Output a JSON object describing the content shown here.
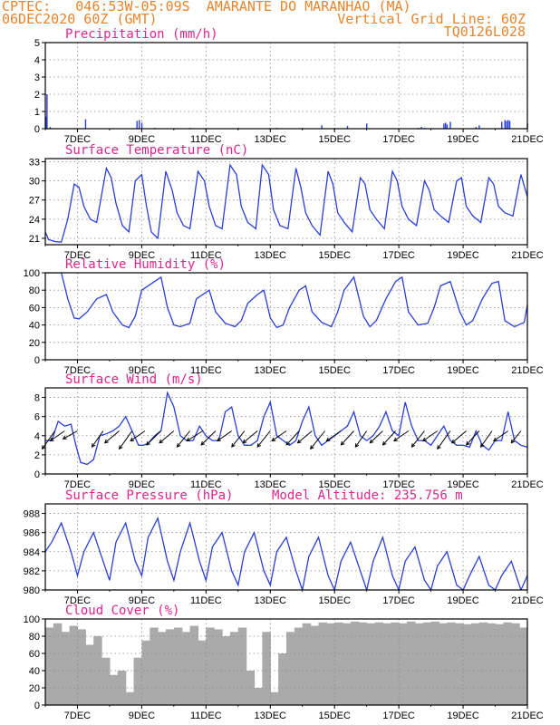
{
  "header": {
    "line1_left": "CPTEC:   046:53W-05:09S  AMARANTE DO MARANHAO (MA)",
    "line2_left": "06DEC2020 60Z (GMT)",
    "line2_right": "Vertical Grid Line: 60Z",
    "line3_right": "TQ0126L028"
  },
  "colors": {
    "header": "#e8842c",
    "title": "#e0248c",
    "line": "#2a3fd6",
    "cloud": "#aaaaaa",
    "arrow": "#000000"
  },
  "chart_data": [
    {
      "type": "bar",
      "title": "Precipitation (mm/h)",
      "xlim": [
        6,
        21
      ],
      "ylim": [
        0,
        5
      ],
      "x_ticks": [
        7,
        9,
        11,
        13,
        15,
        17,
        19,
        21
      ],
      "x_tick_labels": [
        "7DEC",
        "9DEC",
        "11DEC",
        "13DEC",
        "15DEC",
        "17DEC",
        "19DEC",
        "21DEC"
      ],
      "y_ticks": [
        0,
        1,
        2,
        3,
        4,
        5
      ],
      "x": [
        6.02,
        6.05,
        6.15,
        7.25,
        8.85,
        8.92,
        9.0,
        9.4,
        10.5,
        12.0,
        13.2,
        14.0,
        14.6,
        15.0,
        15.4,
        16.0,
        17.6,
        17.7,
        17.8,
        18.4,
        18.45,
        18.5,
        18.6,
        19.4,
        19.5,
        20.2,
        20.3,
        20.35,
        20.4,
        20.45,
        21.0
      ],
      "values": [
        0.7,
        2.0,
        0.1,
        0.55,
        0.45,
        0.5,
        0.35,
        0.05,
        0.05,
        0.05,
        0.05,
        0.05,
        0.2,
        0.05,
        0.15,
        0.3,
        0.05,
        0.1,
        0.05,
        0.3,
        0.35,
        0.25,
        0.4,
        0.1,
        0.2,
        0.4,
        0.5,
        0.45,
        0.5,
        0.45,
        0.3
      ]
    },
    {
      "type": "line",
      "title": "Surface Temperature (nC)",
      "xlim": [
        6,
        21
      ],
      "ylim": [
        20,
        33.5
      ],
      "x_ticks": [
        7,
        9,
        11,
        13,
        15,
        17,
        19,
        21
      ],
      "x_tick_labels": [
        "7DEC",
        "9DEC",
        "11DEC",
        "13DEC",
        "15DEC",
        "17DEC",
        "19DEC",
        "21DEC"
      ],
      "y_ticks": [
        21,
        24,
        27,
        30,
        33
      ],
      "x": [
        6.0,
        6.1,
        6.3,
        6.5,
        6.7,
        6.9,
        7.05,
        7.2,
        7.4,
        7.6,
        7.9,
        8.05,
        8.2,
        8.4,
        8.6,
        8.8,
        9.0,
        9.15,
        9.3,
        9.5,
        9.75,
        9.95,
        10.1,
        10.3,
        10.5,
        10.75,
        10.95,
        11.1,
        11.3,
        11.5,
        11.75,
        11.95,
        12.1,
        12.3,
        12.55,
        12.75,
        12.95,
        13.1,
        13.3,
        13.55,
        13.8,
        13.95,
        14.1,
        14.3,
        14.55,
        14.8,
        14.95,
        15.1,
        15.3,
        15.55,
        15.8,
        15.95,
        16.1,
        16.3,
        16.55,
        16.8,
        16.95,
        17.1,
        17.3,
        17.55,
        17.8,
        17.95,
        18.1,
        18.3,
        18.55,
        18.8,
        18.95,
        19.1,
        19.3,
        19.55,
        19.8,
        19.95,
        20.1,
        20.3,
        20.55,
        20.8,
        21.0
      ],
      "values": [
        22.0,
        20.8,
        20.5,
        20.4,
        24.0,
        29.5,
        29.0,
        26.0,
        24.0,
        23.5,
        32.0,
        30.5,
        26.5,
        23.0,
        22.0,
        30.0,
        31.0,
        26.0,
        22.0,
        21.0,
        31.5,
        28.5,
        25.0,
        23.0,
        22.5,
        31.5,
        30.0,
        26.0,
        23.0,
        22.5,
        32.5,
        31.0,
        26.0,
        23.5,
        22.5,
        32.5,
        31.0,
        25.5,
        23.0,
        22.5,
        32.0,
        29.0,
        25.0,
        23.0,
        21.5,
        31.5,
        29.5,
        25.0,
        23.5,
        22.0,
        30.5,
        29.5,
        25.5,
        24.0,
        22.5,
        31.5,
        30.0,
        26.0,
        24.0,
        23.0,
        30.0,
        28.5,
        25.5,
        24.5,
        23.5,
        30.0,
        30.5,
        26.0,
        24.5,
        23.5,
        30.5,
        29.5,
        26.0,
        25.0,
        24.5,
        31.0,
        27.5
      ]
    },
    {
      "type": "line",
      "title": "Relative Humidity (%)",
      "xlim": [
        6,
        21
      ],
      "ylim": [
        0,
        100
      ],
      "x_ticks": [
        7,
        9,
        11,
        13,
        15,
        17,
        19,
        21
      ],
      "x_tick_labels": [
        "7DEC",
        "9DEC",
        "11DEC",
        "13DEC",
        "15DEC",
        "17DEC",
        "19DEC",
        "21DEC"
      ],
      "y_ticks": [
        0,
        20,
        40,
        60,
        80,
        100
      ],
      "x": [
        6.0,
        6.2,
        6.5,
        6.7,
        6.9,
        7.05,
        7.3,
        7.6,
        7.9,
        8.1,
        8.4,
        8.6,
        8.8,
        9.0,
        9.2,
        9.4,
        9.6,
        9.8,
        10.0,
        10.2,
        10.5,
        10.7,
        10.9,
        11.1,
        11.3,
        11.6,
        11.9,
        12.1,
        12.3,
        12.6,
        12.8,
        13.0,
        13.2,
        13.4,
        13.6,
        13.9,
        14.1,
        14.3,
        14.6,
        14.9,
        15.1,
        15.3,
        15.6,
        15.9,
        16.1,
        16.3,
        16.6,
        16.9,
        17.1,
        17.3,
        17.6,
        17.9,
        18.1,
        18.3,
        18.6,
        18.9,
        19.1,
        19.3,
        19.6,
        19.9,
        20.1,
        20.3,
        20.6,
        20.9,
        21.0
      ],
      "values": [
        100,
        100,
        100,
        70,
        48,
        47,
        55,
        70,
        75,
        55,
        40,
        37,
        50,
        80,
        85,
        90,
        95,
        60,
        40,
        38,
        42,
        70,
        75,
        80,
        55,
        42,
        38,
        45,
        65,
        75,
        80,
        48,
        37,
        40,
        60,
        80,
        85,
        55,
        43,
        38,
        55,
        80,
        95,
        50,
        38,
        45,
        70,
        90,
        95,
        55,
        40,
        42,
        60,
        85,
        90,
        55,
        40,
        45,
        70,
        88,
        90,
        45,
        38,
        43,
        63
      ]
    },
    {
      "type": "line",
      "title": "Surface Wind (m/s)",
      "xlim": [
        6,
        21
      ],
      "ylim": [
        0,
        9
      ],
      "x_ticks": [
        7,
        9,
        11,
        13,
        15,
        17,
        19,
        21
      ],
      "x_tick_labels": [
        "7DEC",
        "9DEC",
        "11DEC",
        "13DEC",
        "15DEC",
        "17DEC",
        "19DEC",
        "21DEC"
      ],
      "y_ticks": [
        0,
        2,
        4,
        6,
        8
      ],
      "x": [
        6.0,
        6.2,
        6.4,
        6.6,
        6.8,
        6.95,
        7.1,
        7.3,
        7.5,
        7.7,
        7.9,
        8.1,
        8.3,
        8.5,
        8.7,
        8.9,
        9.05,
        9.2,
        9.4,
        9.6,
        9.8,
        10.0,
        10.2,
        10.4,
        10.6,
        10.8,
        11.0,
        11.2,
        11.4,
        11.6,
        11.8,
        12.0,
        12.2,
        12.4,
        12.6,
        12.8,
        13.0,
        13.2,
        13.4,
        13.6,
        13.8,
        14.0,
        14.2,
        14.4,
        14.6,
        14.8,
        15.0,
        15.2,
        15.4,
        15.6,
        15.8,
        16.0,
        16.2,
        16.4,
        16.6,
        16.8,
        17.0,
        17.2,
        17.4,
        17.6,
        17.8,
        18.0,
        18.2,
        18.4,
        18.6,
        18.8,
        19.0,
        19.2,
        19.4,
        19.6,
        19.8,
        20.0,
        20.2,
        20.4,
        20.6,
        20.8,
        21.0
      ],
      "values": [
        3.5,
        3.5,
        5.5,
        5.0,
        5.2,
        3.0,
        1.2,
        1.0,
        1.5,
        4.0,
        4.2,
        4.5,
        5.0,
        6.0,
        4.5,
        3.0,
        3.0,
        3.2,
        4.0,
        4.5,
        8.5,
        7.0,
        4.0,
        3.5,
        3.5,
        5.0,
        4.0,
        3.5,
        3.5,
        6.5,
        7.0,
        4.0,
        3.0,
        3.0,
        3.5,
        6.0,
        7.5,
        4.0,
        3.5,
        3.0,
        3.5,
        5.5,
        7.0,
        4.0,
        3.0,
        3.5,
        4.0,
        4.5,
        5.0,
        6.5,
        4.0,
        3.5,
        4.0,
        5.0,
        6.5,
        4.5,
        4.0,
        7.5,
        5.0,
        3.5,
        3.5,
        3.0,
        4.0,
        5.0,
        3.5,
        3.0,
        3.0,
        2.8,
        4.5,
        3.0,
        2.5,
        3.5,
        3.5,
        6.5,
        3.5,
        3.0,
        2.8
      ]
    },
    {
      "type": "line",
      "title": "Surface Pressure (hPa)",
      "annotation": "Model Altitude: 235.756 m",
      "xlim": [
        6,
        21
      ],
      "ylim": [
        980,
        989
      ],
      "x_ticks": [
        7,
        9,
        11,
        13,
        15,
        17,
        19,
        21
      ],
      "x_tick_labels": [
        "7DEC",
        "9DEC",
        "11DEC",
        "13DEC",
        "15DEC",
        "17DEC",
        "19DEC",
        "21DEC"
      ],
      "y_ticks": [
        980,
        982,
        984,
        986,
        988
      ],
      "x": [
        6.0,
        6.2,
        6.5,
        6.8,
        7.0,
        7.2,
        7.5,
        7.8,
        8.0,
        8.2,
        8.5,
        8.8,
        9.0,
        9.2,
        9.5,
        9.8,
        10.0,
        10.2,
        10.5,
        10.8,
        11.0,
        11.2,
        11.5,
        11.8,
        12.0,
        12.2,
        12.5,
        12.8,
        13.0,
        13.2,
        13.5,
        13.8,
        14.0,
        14.2,
        14.5,
        14.8,
        15.0,
        15.2,
        15.5,
        15.8,
        16.0,
        16.2,
        16.5,
        16.8,
        17.0,
        17.2,
        17.5,
        17.8,
        18.0,
        18.2,
        18.5,
        18.8,
        19.0,
        19.2,
        19.5,
        19.8,
        20.0,
        20.2,
        20.5,
        20.8,
        21.0
      ],
      "values": [
        984.0,
        985.0,
        987.0,
        984.0,
        981.5,
        984.0,
        986.0,
        983.0,
        981.0,
        985.0,
        987.0,
        983.0,
        981.5,
        985.5,
        987.5,
        983.0,
        981.0,
        984.0,
        987.0,
        983.0,
        981.0,
        984.5,
        986.0,
        982.0,
        980.5,
        984.0,
        986.0,
        982.0,
        980.5,
        984.0,
        985.5,
        982.0,
        980.0,
        983.5,
        985.5,
        981.5,
        980.0,
        983.0,
        985.0,
        982.0,
        980.0,
        983.0,
        985.5,
        981.5,
        980.0,
        983.0,
        984.5,
        981.0,
        980.0,
        982.5,
        984.0,
        980.5,
        980.0,
        981.5,
        983.5,
        980.5,
        980.0,
        981.5,
        983.0,
        980.0,
        981.5
      ]
    },
    {
      "type": "bar",
      "title": "Cloud Cover (%)",
      "xlim": [
        6,
        21
      ],
      "ylim": [
        0,
        100
      ],
      "x_ticks": [
        7,
        9,
        11,
        13,
        15,
        17,
        19,
        21
      ],
      "x_tick_labels": [
        "7DEC",
        "9DEC",
        "11DEC",
        "13DEC",
        "15DEC",
        "17DEC",
        "19DEC",
        "21DEC"
      ],
      "y_ticks": [
        0,
        20,
        40,
        60,
        80,
        100
      ],
      "x": [
        6.0,
        6.25,
        6.5,
        6.75,
        7.0,
        7.25,
        7.5,
        7.75,
        8.0,
        8.25,
        8.5,
        8.75,
        9.0,
        9.25,
        9.5,
        9.75,
        10.0,
        10.25,
        10.5,
        10.75,
        11.0,
        11.25,
        11.5,
        11.75,
        12.0,
        12.25,
        12.5,
        12.75,
        13.0,
        13.25,
        13.5,
        13.75,
        14.0,
        14.25,
        14.5,
        14.75,
        15.0,
        15.25,
        15.5,
        15.75,
        16.0,
        16.25,
        16.5,
        16.75,
        17.0,
        17.25,
        17.5,
        17.75,
        18.0,
        18.25,
        18.5,
        18.75,
        19.0,
        19.25,
        19.5,
        19.75,
        20.0,
        20.25,
        20.5,
        20.75
      ],
      "values": [
        90,
        95,
        85,
        92,
        88,
        70,
        80,
        55,
        35,
        40,
        15,
        55,
        75,
        90,
        85,
        88,
        90,
        85,
        92,
        75,
        90,
        88,
        80,
        85,
        90,
        40,
        20,
        85,
        15,
        60,
        85,
        90,
        95,
        92,
        96,
        95,
        96,
        95,
        97,
        96,
        95,
        96,
        95,
        96,
        95,
        97,
        95,
        96,
        97,
        95,
        96,
        95,
        94,
        95,
        96,
        95,
        94,
        96,
        95,
        90
      ]
    },
    {
      "type": "quiver",
      "x": [
        6.3,
        6.6,
        7.0,
        7.8,
        8.3,
        8.7,
        9.1,
        9.6,
        10.0,
        10.5,
        10.9,
        11.3,
        11.8,
        12.2,
        12.6,
        13.0,
        13.5,
        13.9,
        14.3,
        14.7,
        15.2,
        15.6,
        16.0,
        16.5,
        16.9,
        17.3,
        17.8,
        18.2,
        18.6,
        19.1,
        19.5,
        19.9,
        20.4,
        20.8
      ],
      "u": [
        -0.8,
        -0.9,
        -0.9,
        -0.7,
        -0.9,
        -0.8,
        -0.9,
        -0.9,
        -0.9,
        -0.8,
        -1.0,
        -0.9,
        -0.9,
        -0.8,
        -0.9,
        -0.8,
        -0.9,
        -0.8,
        -0.9,
        -0.9,
        -0.9,
        -0.8,
        -0.7,
        -0.8,
        -0.8,
        -0.9,
        -0.8,
        -0.9,
        -0.8,
        -0.9,
        -0.8,
        -0.7,
        -0.9,
        -0.6
      ],
      "v": [
        -0.9,
        -0.5,
        -0.4,
        -0.8,
        -0.6,
        -0.9,
        -0.5,
        -0.7,
        -0.6,
        -0.8,
        -0.5,
        -0.7,
        -0.5,
        -0.8,
        -0.6,
        -0.8,
        -0.5,
        -0.7,
        -0.6,
        -0.9,
        -0.5,
        -0.7,
        -0.8,
        -0.6,
        -0.7,
        -0.5,
        -0.8,
        -0.5,
        -0.9,
        -0.6,
        -0.7,
        -0.8,
        -0.5,
        -0.6
      ]
    }
  ]
}
